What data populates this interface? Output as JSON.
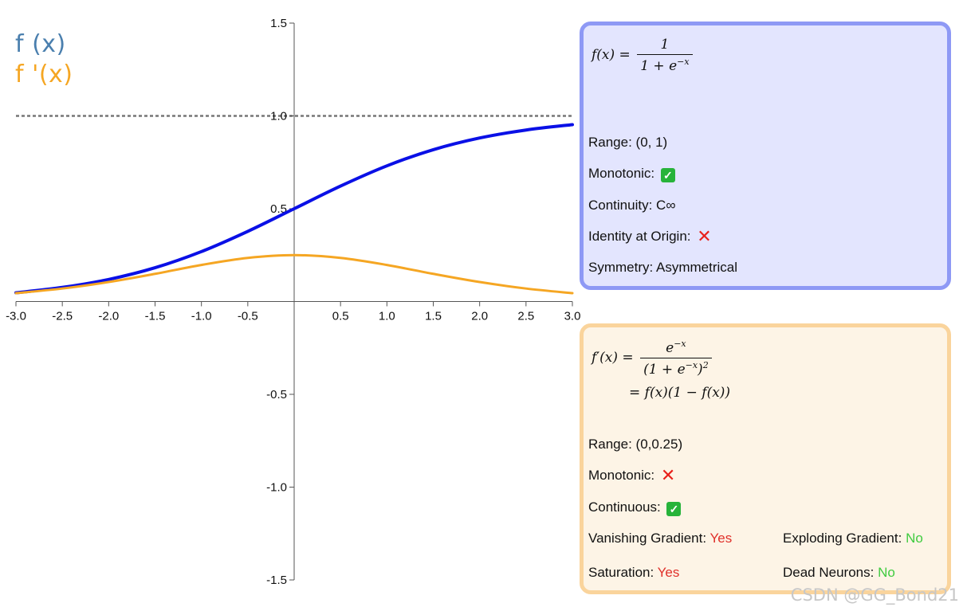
{
  "colors": {
    "f_line": "#0a10e6",
    "df_line": "#f5a623",
    "legend_f": "#4a7fae",
    "legend_df": "#f5a623",
    "asymptote": "#777777",
    "axis": "#555555"
  },
  "legend": {
    "f": "f (x)",
    "df": "f '(x)"
  },
  "chart_data": {
    "type": "line",
    "xlim": [
      -3.0,
      3.0
    ],
    "ylim": [
      -1.5,
      1.5
    ],
    "x_ticks": [
      "-3.0",
      "-2.5",
      "-2.0",
      "-1.5",
      "-1.0",
      "-0.5",
      "0.5",
      "1.0",
      "1.5",
      "2.0",
      "2.5",
      "3.0"
    ],
    "x_tick_values": [
      -3.0,
      -2.5,
      -2.0,
      -1.5,
      -1.0,
      -0.5,
      0.5,
      1.0,
      1.5,
      2.0,
      2.5,
      3.0
    ],
    "y_ticks": [
      "1.5",
      "1.0",
      "0.5",
      "-0.5",
      "-1.0",
      "-1.5"
    ],
    "y_tick_values": [
      1.5,
      1.0,
      0.5,
      -0.5,
      -1.0,
      -1.5
    ],
    "reference_line": {
      "y": 1.0,
      "style": "dotted"
    },
    "series": [
      {
        "name": "f (x)",
        "x": [
          -3.0,
          -2.5,
          -2.0,
          -1.5,
          -1.0,
          -0.5,
          0.0,
          0.5,
          1.0,
          1.5,
          2.0,
          2.5,
          3.0
        ],
        "y": [
          0.047,
          0.076,
          0.119,
          0.182,
          0.269,
          0.378,
          0.5,
          0.622,
          0.731,
          0.818,
          0.881,
          0.924,
          0.953
        ]
      },
      {
        "name": "f '(x)",
        "x": [
          -3.0,
          -2.5,
          -2.0,
          -1.5,
          -1.0,
          -0.5,
          0.0,
          0.5,
          1.0,
          1.5,
          2.0,
          2.5,
          3.0
        ],
        "y": [
          0.045,
          0.07,
          0.105,
          0.149,
          0.197,
          0.235,
          0.25,
          0.235,
          0.197,
          0.149,
          0.105,
          0.07,
          0.045
        ]
      }
    ],
    "grid": false
  },
  "panel_f": {
    "formula": {
      "lhs": "f(x) =",
      "num": "1",
      "den_base": "1 + e",
      "den_sup": "−x"
    },
    "range": "Range: (0, 1)",
    "monotonic": "Monotonic:",
    "continuity": "Continuity: C∞",
    "identity": "Identity at Origin:",
    "symmetry": "Symmetry: Asymmetrical"
  },
  "panel_df": {
    "formula": {
      "lhs": "f′(x) =",
      "num_base": "e",
      "num_sup": "−x",
      "den_a": "(1 + e",
      "den_sup": "−x",
      "den_b": ")",
      "den_sq": "2",
      "line2": "= f(x)(1 − f(x))"
    },
    "range": "Range: (0,0.25)",
    "monotonic": "Monotonic:",
    "continuous": "Continuous:",
    "vanishing_label": "Vanishing Gradient:",
    "vanishing_value": "Yes",
    "exploding_label": "Exploding Gradient:",
    "exploding_value": "No",
    "saturation_label": "Saturation:",
    "saturation_value": "Yes",
    "dead_label": "Dead Neurons:",
    "dead_value": "No"
  },
  "badges": {
    "check": "✓",
    "cross": "✕"
  },
  "watermark": "CSDN @GG_Bond21"
}
